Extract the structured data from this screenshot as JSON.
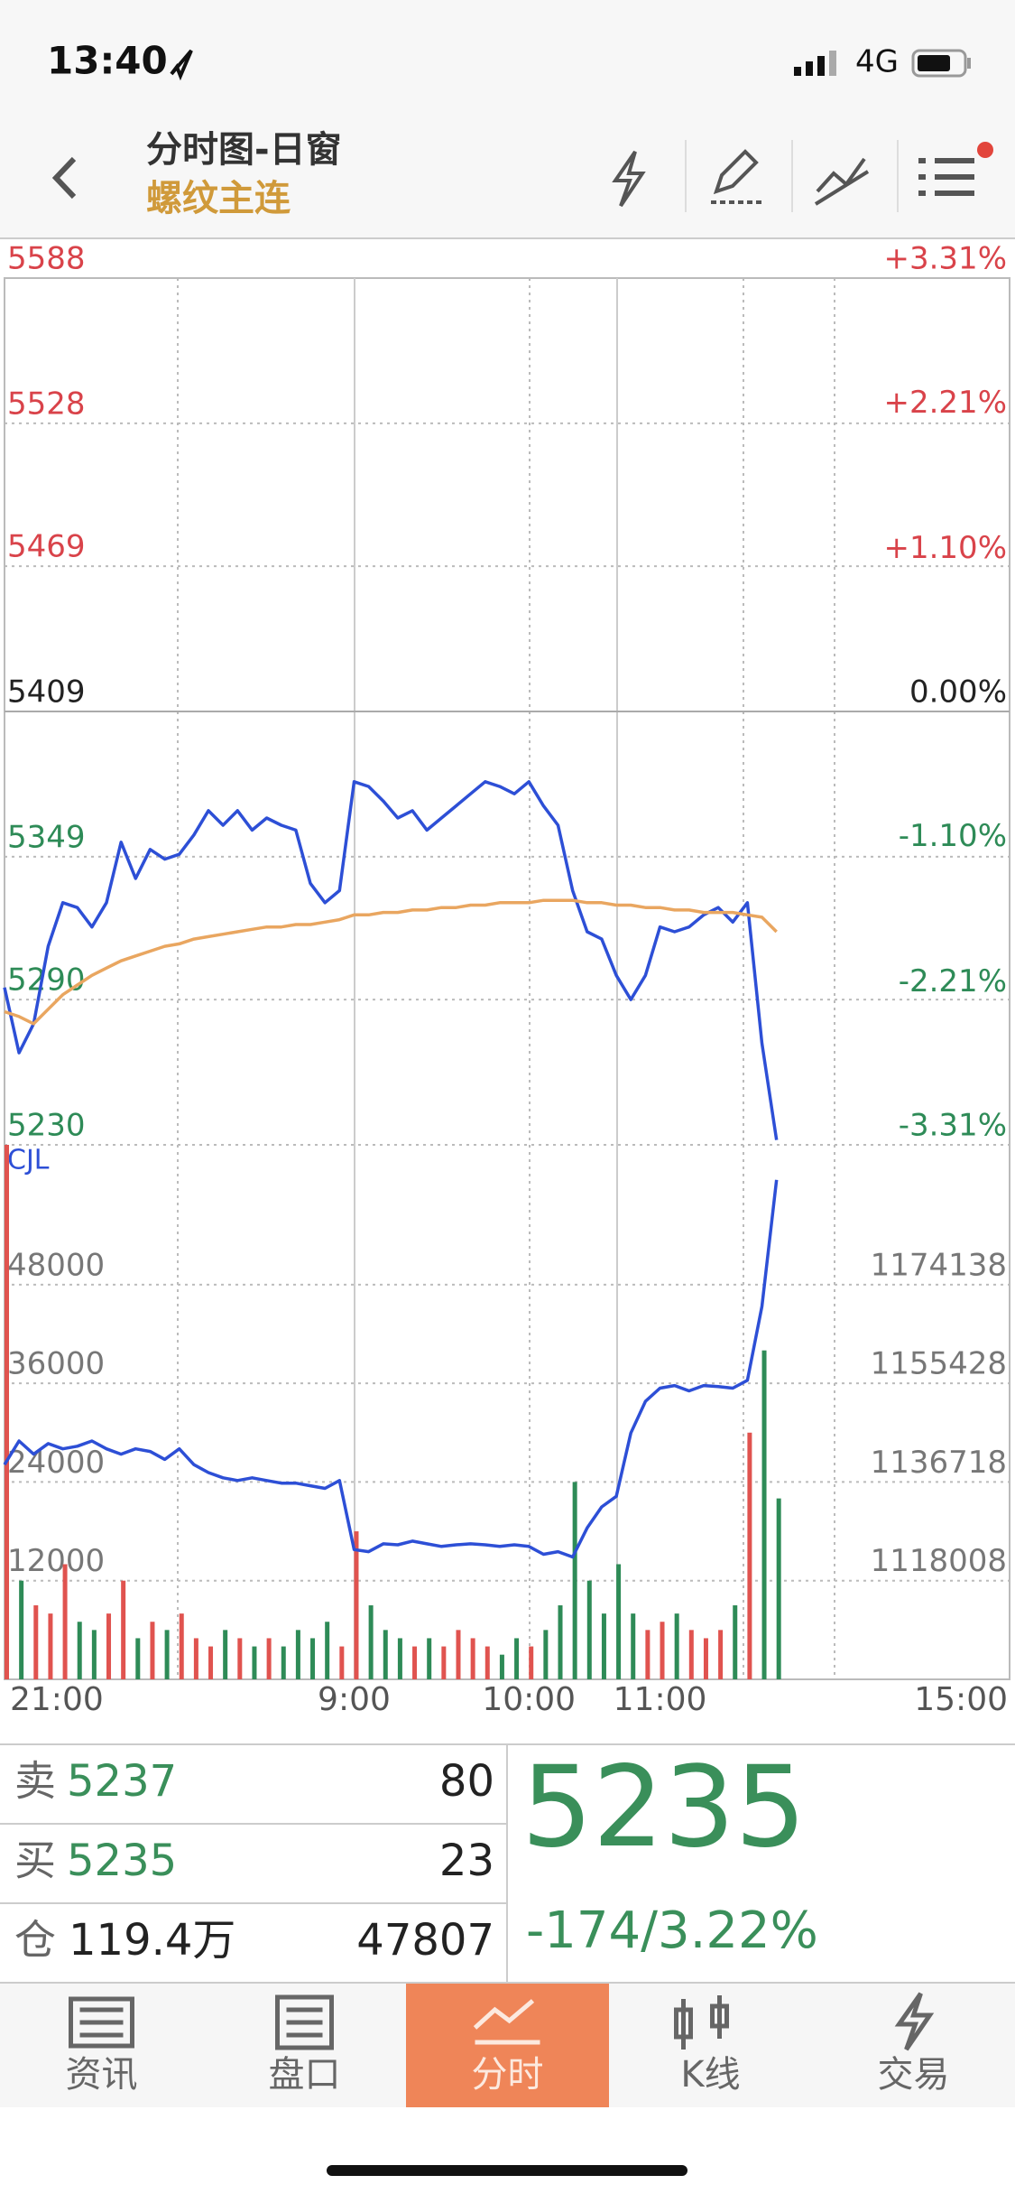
{
  "status_bar": {
    "time": "13:40",
    "network": "4G"
  },
  "header": {
    "title": "分时图-日窗",
    "subtitle": "螺纹主连"
  },
  "chart_data": [
    {
      "type": "line",
      "x": [
        0,
        5,
        10,
        15,
        20,
        25,
        30,
        35,
        40,
        45,
        50,
        55,
        60,
        65,
        70,
        75,
        80,
        85,
        90,
        95,
        100,
        105,
        110,
        115,
        120,
        125,
        130,
        135,
        140,
        145,
        150,
        155,
        160,
        165,
        170,
        175,
        180,
        185,
        190,
        195,
        200,
        205,
        210,
        215,
        220,
        225,
        230,
        235,
        240,
        245,
        250,
        255,
        260,
        265
      ],
      "xlim": [
        0,
        345
      ],
      "series": [
        {
          "color": "#2d4fd6",
          "values": [
            5295,
            5268,
            5280,
            5312,
            5330,
            5328,
            5320,
            5330,
            5355,
            5340,
            5352,
            5348,
            5350,
            5358,
            5368,
            5362,
            5368,
            5360,
            5365,
            5362,
            5360,
            5338,
            5330,
            5335,
            5380,
            5378,
            5372,
            5365,
            5368,
            5360,
            5365,
            5370,
            5375,
            5380,
            5378,
            5375,
            5380,
            5370,
            5362,
            5335,
            5318,
            5315,
            5300,
            5290,
            5300,
            5320,
            5318,
            5320,
            5325,
            5328,
            5322,
            5330,
            5272,
            5232
          ]
        },
        {
          "color": "#e9a660",
          "values": [
            5285,
            5283,
            5280,
            5286,
            5292,
            5296,
            5300,
            5303,
            5306,
            5308,
            5310,
            5312,
            5313,
            5315,
            5316,
            5317,
            5318,
            5319,
            5320,
            5320,
            5321,
            5321,
            5322,
            5323,
            5325,
            5325,
            5326,
            5326,
            5327,
            5327,
            5328,
            5328,
            5329,
            5329,
            5330,
            5330,
            5330,
            5331,
            5331,
            5331,
            5330,
            5330,
            5329,
            5329,
            5328,
            5328,
            5327,
            5327,
            5326,
            5326,
            5326,
            5325,
            5324,
            5318
          ]
        }
      ],
      "ylim": [
        5230,
        5588
      ],
      "yticks": [
        5588,
        5528,
        5469,
        5409,
        5349,
        5290,
        5230
      ],
      "y2lim": [
        -3.31,
        3.31
      ],
      "y2ticks": [
        {
          "value": 3.31,
          "label": "+3.31%"
        },
        {
          "value": 2.21,
          "label": "+2.21%"
        },
        {
          "value": 1.1,
          "label": "+1.10%"
        },
        {
          "value": 0,
          "label": "0.00%"
        },
        {
          "value": -1.1,
          "label": "-1.10%"
        },
        {
          "value": -2.21,
          "label": "-2.21%"
        },
        {
          "value": -3.31,
          "label": "-3.31%"
        }
      ],
      "up_color": "#d9434a",
      "down_color": "#2e8b57",
      "flat_color": "#222222",
      "grid": true
    },
    {
      "type": "bar",
      "title": "CJL",
      "x": [
        0,
        5,
        10,
        15,
        20,
        25,
        30,
        35,
        40,
        45,
        50,
        55,
        60,
        65,
        70,
        75,
        80,
        85,
        90,
        95,
        100,
        105,
        110,
        115,
        120,
        125,
        130,
        135,
        140,
        145,
        150,
        155,
        160,
        165,
        170,
        175,
        180,
        185,
        190,
        195,
        200,
        205,
        210,
        215,
        220,
        225,
        230,
        235,
        240,
        245,
        250,
        255,
        260,
        265
      ],
      "xlim": [
        0,
        345
      ],
      "xticks": [
        {
          "value": 0,
          "label": "21:00"
        },
        {
          "value": 120,
          "label": "9:00"
        },
        {
          "value": 180,
          "label": "10:00"
        },
        {
          "value": 225,
          "label": "11:00"
        },
        {
          "value": 345,
          "label": "15:00"
        }
      ],
      "series": [
        {
          "type": "bar",
          "values": [
            65000,
            12000,
            9000,
            8000,
            14000,
            7000,
            6000,
            8000,
            12000,
            5000,
            7000,
            6000,
            8000,
            5000,
            4000,
            6000,
            5000,
            4000,
            5000,
            4000,
            6000,
            5000,
            7000,
            4000,
            18000,
            9000,
            6000,
            5000,
            4000,
            5000,
            4000,
            6000,
            5000,
            4000,
            3000,
            5000,
            4000,
            6000,
            9000,
            24000,
            12000,
            8000,
            14000,
            8000,
            6000,
            7000,
            8000,
            6000,
            5000,
            6000,
            9000,
            30000,
            40000,
            22000
          ]
        },
        {
          "type": "line",
          "axis": "y2",
          "color": "#2d4fd6",
          "values": [
            1140000,
            1144500,
            1142000,
            1144000,
            1143000,
            1143500,
            1144500,
            1143000,
            1142000,
            1143000,
            1142500,
            1141000,
            1143000,
            1140000,
            1138500,
            1137500,
            1137000,
            1137500,
            1137000,
            1136500,
            1136500,
            1136000,
            1135500,
            1137000,
            1123900,
            1123500,
            1125000,
            1124800,
            1125500,
            1125000,
            1124500,
            1124800,
            1125000,
            1124800,
            1124500,
            1124800,
            1124500,
            1123000,
            1123500,
            1122500,
            1128000,
            1132000,
            1134000,
            1146000,
            1152000,
            1154500,
            1155000,
            1154000,
            1155000,
            1154800,
            1154500,
            1156000,
            1170000,
            1194000
          ]
        }
      ],
      "ylim": [
        0,
        65000
      ],
      "yticks": [
        12000,
        24000,
        36000,
        48000
      ],
      "y2lim": [
        1099298,
        1200644
      ],
      "y2ticks": [
        1118008,
        1136718,
        1155428,
        1174138
      ],
      "up_color": "#e0534f",
      "down_color": "#2e8b57",
      "grid": true
    }
  ],
  "quote": {
    "rows": [
      {
        "label": "卖",
        "price": 5237,
        "volume": 80
      },
      {
        "label": "买",
        "price": 5235,
        "volume": 23
      },
      {
        "label": "仓",
        "price": "119.4万",
        "volume": 47807
      }
    ],
    "last": 5235,
    "change": "-174/3.22%",
    "color": "#3a8f5a"
  },
  "tabs": [
    "资讯",
    "盘口",
    "分时",
    "K线",
    "交易"
  ],
  "active_tab": 2
}
